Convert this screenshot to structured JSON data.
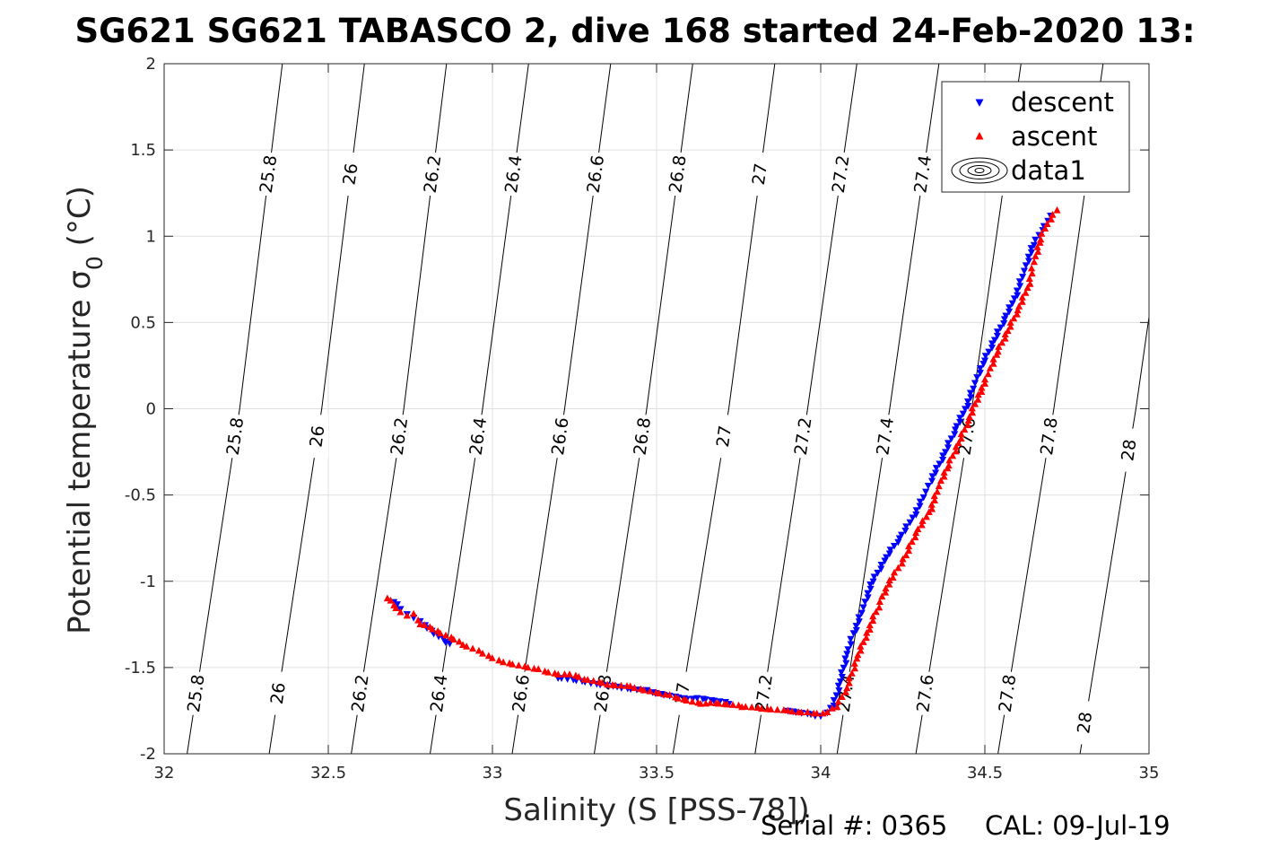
{
  "chart_data": {
    "type": "scatter",
    "title": "SG621 SG621 TABASCO 2, dive 168 started 24-Feb-2020 13:",
    "xlabel": "Salinity (S [PSS-78])",
    "ylabel_main": "Potential temperature σ",
    "ylabel_sub": "0",
    "ylabel_unit": " (°C)",
    "xlim": [
      32,
      35
    ],
    "ylim": [
      -2,
      2
    ],
    "x_ticks": [
      32,
      32.5,
      33,
      33.5,
      34,
      34.5,
      35
    ],
    "x_tick_labels": [
      "32",
      "32.5",
      "33",
      "33.5",
      "34",
      "34.5",
      "35"
    ],
    "y_ticks": [
      -2,
      -1.5,
      -1,
      -0.5,
      0,
      0.5,
      1,
      1.5,
      2
    ],
    "y_tick_labels": [
      "-2",
      "-1.5",
      "-1",
      "-0.5",
      "0",
      "0.5",
      "1",
      "1.5",
      "2"
    ],
    "grid": true,
    "legend_position": "top-right",
    "colors": {
      "descent": "#0000ff",
      "ascent": "#ff0000",
      "contour": "#000000",
      "grid": "#e0e0e0"
    },
    "legend": [
      {
        "name": "descent",
        "marker": "triangle-down",
        "color": "#0000ff"
      },
      {
        "name": "ascent",
        "marker": "triangle-up",
        "color": "#ff0000"
      },
      {
        "name": "data1",
        "marker": "contour-ellipse",
        "color": "#000000"
      }
    ],
    "density_contours": [
      {
        "label": "25.8",
        "line": [
          [
            32.07,
            -2
          ],
          [
            32.23,
            0
          ],
          [
            32.36,
            2
          ]
        ]
      },
      {
        "label": "26",
        "line": [
          [
            32.32,
            -2
          ],
          [
            32.48,
            0
          ],
          [
            32.61,
            2
          ]
        ]
      },
      {
        "label": "26.2",
        "line": [
          [
            32.57,
            -2
          ],
          [
            32.73,
            0
          ],
          [
            32.86,
            2
          ]
        ]
      },
      {
        "label": "26.4",
        "line": [
          [
            32.81,
            -2
          ],
          [
            32.97,
            0
          ],
          [
            33.11,
            2
          ]
        ]
      },
      {
        "label": "26.6",
        "line": [
          [
            33.06,
            -2
          ],
          [
            33.22,
            0
          ],
          [
            33.36,
            2
          ]
        ]
      },
      {
        "label": "26.8",
        "line": [
          [
            33.31,
            -2
          ],
          [
            33.47,
            0
          ],
          [
            33.61,
            2
          ]
        ]
      },
      {
        "label": "27",
        "line": [
          [
            33.55,
            -2
          ],
          [
            33.72,
            0
          ],
          [
            33.86,
            2
          ]
        ]
      },
      {
        "label": "27.2",
        "line": [
          [
            33.8,
            -2
          ],
          [
            33.96,
            0
          ],
          [
            34.11,
            2
          ]
        ]
      },
      {
        "label": "27.4",
        "line": [
          [
            34.05,
            -2
          ],
          [
            34.21,
            0
          ],
          [
            34.36,
            2
          ]
        ]
      },
      {
        "label": "27.6",
        "line": [
          [
            34.29,
            -2
          ],
          [
            34.46,
            0
          ],
          [
            34.61,
            2
          ]
        ]
      },
      {
        "label": "27.8",
        "line": [
          [
            34.54,
            -2
          ],
          [
            34.71,
            0
          ],
          [
            34.86,
            2
          ]
        ]
      },
      {
        "label": "28",
        "line": [
          [
            34.79,
            -2
          ],
          [
            34.96,
            0
          ],
          [
            35.11,
            2
          ]
        ]
      }
    ],
    "series": [
      {
        "name": "descent",
        "marker": "triangle-down",
        "points": [
          [
            32.7,
            -1.12
          ],
          [
            32.72,
            -1.16
          ],
          [
            32.74,
            -1.19
          ],
          [
            32.76,
            -1.21
          ],
          [
            32.78,
            -1.23
          ],
          [
            32.87,
            -1.36
          ],
          [
            33.2,
            -1.56
          ],
          [
            33.3,
            -1.59
          ],
          [
            33.38,
            -1.61
          ],
          [
            33.47,
            -1.63
          ],
          [
            33.61,
            -1.68
          ],
          [
            33.72,
            -1.71
          ],
          [
            33.9,
            -1.75
          ],
          [
            33.97,
            -1.77
          ],
          [
            34.0,
            -1.78
          ],
          [
            34.02,
            -1.76
          ],
          [
            34.04,
            -1.72
          ],
          [
            34.06,
            -1.58
          ],
          [
            34.08,
            -1.42
          ],
          [
            34.1,
            -1.3
          ],
          [
            34.13,
            -1.15
          ],
          [
            34.16,
            -1.0
          ],
          [
            34.2,
            -0.86
          ],
          [
            34.24,
            -0.75
          ],
          [
            34.28,
            -0.63
          ],
          [
            34.32,
            -0.48
          ],
          [
            34.35,
            -0.37
          ],
          [
            34.38,
            -0.25
          ],
          [
            34.41,
            -0.12
          ],
          [
            34.44,
            0.0
          ],
          [
            34.47,
            0.15
          ],
          [
            34.5,
            0.28
          ],
          [
            34.53,
            0.4
          ],
          [
            34.56,
            0.52
          ],
          [
            34.59,
            0.64
          ],
          [
            34.62,
            0.8
          ],
          [
            34.65,
            0.95
          ],
          [
            34.68,
            1.06
          ],
          [
            34.7,
            1.12
          ]
        ]
      },
      {
        "name": "ascent",
        "marker": "triangle-up",
        "points": [
          [
            32.68,
            -1.1
          ],
          [
            32.7,
            -1.14
          ],
          [
            32.72,
            -1.18
          ],
          [
            32.74,
            -1.2
          ],
          [
            32.76,
            -1.19
          ],
          [
            32.78,
            -1.25
          ],
          [
            32.91,
            -1.37
          ],
          [
            32.97,
            -1.42
          ],
          [
            33.02,
            -1.46
          ],
          [
            33.14,
            -1.51
          ],
          [
            33.22,
            -1.54
          ],
          [
            33.28,
            -1.57
          ],
          [
            33.35,
            -1.6
          ],
          [
            33.42,
            -1.61
          ],
          [
            33.54,
            -1.66
          ],
          [
            33.65,
            -1.71
          ],
          [
            33.76,
            -1.73
          ],
          [
            33.82,
            -1.74
          ],
          [
            33.9,
            -1.75
          ],
          [
            33.96,
            -1.76
          ],
          [
            34.02,
            -1.76
          ],
          [
            34.05,
            -1.73
          ],
          [
            34.08,
            -1.62
          ],
          [
            34.11,
            -1.45
          ],
          [
            34.14,
            -1.3
          ],
          [
            34.18,
            -1.12
          ],
          [
            34.22,
            -0.98
          ],
          [
            34.26,
            -0.85
          ],
          [
            34.29,
            -0.72
          ],
          [
            34.33,
            -0.6
          ],
          [
            34.36,
            -0.45
          ],
          [
            34.39,
            -0.33
          ],
          [
            34.42,
            -0.2
          ],
          [
            34.45,
            -0.07
          ],
          [
            34.48,
            0.08
          ],
          [
            34.51,
            0.2
          ],
          [
            34.54,
            0.33
          ],
          [
            34.57,
            0.45
          ],
          [
            34.6,
            0.57
          ],
          [
            34.63,
            0.7
          ],
          [
            34.65,
            0.85
          ],
          [
            34.67,
            0.98
          ],
          [
            34.69,
            1.07
          ],
          [
            34.72,
            1.15
          ]
        ]
      }
    ]
  },
  "footer": {
    "serial_label": "Serial #: 0365",
    "cal_label": "CAL: 09-Jul-19"
  }
}
